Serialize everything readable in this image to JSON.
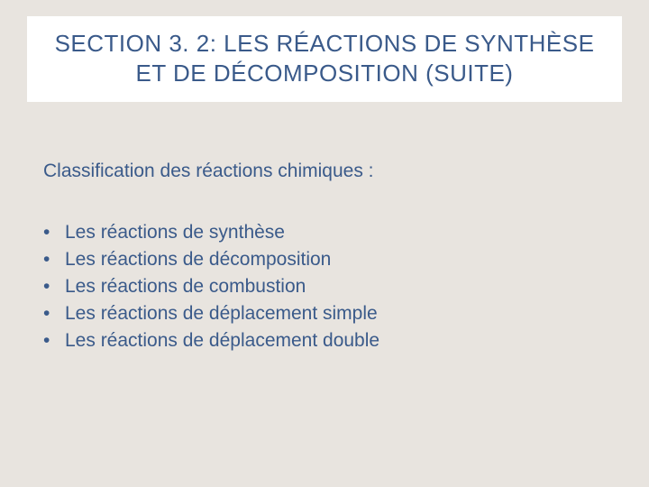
{
  "colors": {
    "background": "#e8e4df",
    "title_box_bg": "#ffffff",
    "text_color": "#3a5a8a"
  },
  "typography": {
    "title_fontsize": 26,
    "body_fontsize": 21,
    "font_family": "Arial"
  },
  "title": {
    "line1": "SECTION 3. 2: LES RÉACTIONS DE SYNTHÈSE",
    "line2": "ET DE DÉCOMPOSITION (SUITE)"
  },
  "subtitle": "Classification des réactions chimiques :",
  "bullets": [
    "Les réactions de synthèse",
    "Les réactions de décomposition",
    "Les réactions de combustion",
    "Les réactions de déplacement simple",
    "Les réactions de déplacement double"
  ]
}
